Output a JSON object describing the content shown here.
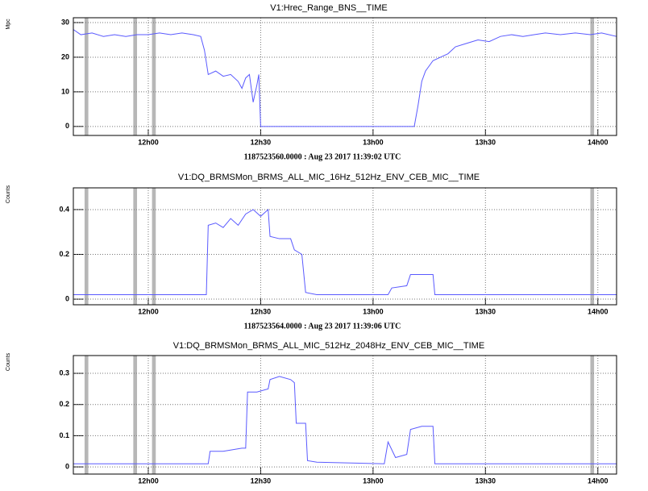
{
  "chart_data": [
    {
      "type": "line",
      "title": "V1:Hrec_Range_BNS__TIME",
      "ylabel": "Mpc",
      "annotation": "1187523560.0000 : Aug 23 2017 11:39:02 UTC",
      "x": [
        "11:40",
        "11:42",
        "11:45",
        "11:48",
        "11:51",
        "11:54",
        "11:57",
        "12:00",
        "12:03",
        "12:06",
        "12:09",
        "12:12",
        "12:14",
        "12:15",
        "12:16",
        "12:18",
        "12:20",
        "12:22",
        "12:24",
        "12:25",
        "12:26",
        "12:27",
        "12:28",
        "12:29",
        "12:29:30",
        "12:30",
        "13:11",
        "13:12",
        "13:13",
        "13:14",
        "13:16",
        "13:18",
        "13:20",
        "13:22",
        "13:25",
        "13:28",
        "13:31",
        "13:34",
        "13:37",
        "13:40",
        "13:43",
        "13:46",
        "13:50",
        "13:54",
        "13:58",
        "14:01",
        "14:05"
      ],
      "series": [
        {
          "color": "#5a5aff",
          "values": [
            28,
            26.5,
            27,
            26,
            26.5,
            26,
            26.5,
            26.5,
            27,
            26.5,
            27,
            26.5,
            26,
            22,
            15,
            16,
            14.5,
            15,
            13,
            11,
            14,
            15,
            7,
            12,
            15,
            0,
            0,
            6,
            13,
            16,
            19,
            20,
            21,
            23,
            24,
            25,
            24.5,
            26,
            26.5,
            26,
            26.5,
            27,
            26.5,
            27,
            26.5,
            27,
            26
          ]
        }
      ],
      "xlim": [
        "11:40",
        "14:05"
      ],
      "xticks": [
        {
          "value": "12:00",
          "label": "12h00"
        },
        {
          "value": "12:30",
          "label": "12h30"
        },
        {
          "value": "13:00",
          "label": "13h00"
        },
        {
          "value": "13:30",
          "label": "13h30"
        },
        {
          "value": "14:00",
          "label": "14h00"
        }
      ],
      "ylim": [
        -2.6,
        31.4
      ],
      "yticks": [
        0,
        10,
        20,
        30
      ],
      "grid": true,
      "shaded": [
        [
          "11:43",
          "11:44"
        ],
        [
          "11:56",
          "11:57"
        ],
        [
          "12:01",
          "12:02"
        ],
        [
          "13:58",
          "13:59"
        ]
      ]
    },
    {
      "type": "line",
      "title": "V1:DQ_BRMSMon_BRMS_ALL_MIC_16Hz_512Hz_ENV_CEB_MIC__TIME",
      "ylabel": "Counts",
      "annotation": "1187523564.0000 : Aug 23 2017 11:39:06 UTC",
      "x": [
        "11:40",
        "12:14",
        "12:15:30",
        "12:16",
        "12:18",
        "12:20",
        "12:22",
        "12:24",
        "12:26",
        "12:28",
        "12:30",
        "12:32",
        "12:32:30",
        "12:35",
        "12:38",
        "12:39",
        "12:41",
        "12:42",
        "12:45",
        "13:04",
        "13:05",
        "13:09",
        "13:10",
        "13:13",
        "13:16",
        "13:16:30",
        "14:05"
      ],
      "series": [
        {
          "color": "#5a5aff",
          "values": [
            0.02,
            0.02,
            0.02,
            0.33,
            0.34,
            0.32,
            0.36,
            0.33,
            0.38,
            0.4,
            0.37,
            0.4,
            0.28,
            0.27,
            0.27,
            0.22,
            0.2,
            0.03,
            0.02,
            0.02,
            0.05,
            0.06,
            0.11,
            0.11,
            0.11,
            0.02,
            0.02
          ]
        }
      ],
      "xlim": [
        "11:40",
        "14:05"
      ],
      "xticks": [
        {
          "value": "12:00",
          "label": "12h00"
        },
        {
          "value": "12:30",
          "label": "12h30"
        },
        {
          "value": "13:00",
          "label": "13h00"
        },
        {
          "value": "13:30",
          "label": "13h30"
        },
        {
          "value": "14:00",
          "label": "14h00"
        }
      ],
      "ylim": [
        -0.025,
        0.497
      ],
      "yticks": [
        0,
        0.2,
        0.4
      ],
      "grid": true,
      "shaded": [
        [
          "11:43",
          "11:44"
        ],
        [
          "11:56",
          "11:57"
        ],
        [
          "12:01",
          "12:02"
        ],
        [
          "13:58",
          "13:59"
        ]
      ]
    },
    {
      "type": "line",
      "title": "V1:DQ_BRMSMon_BRMS_ALL_MIC_512Hz_2048Hz_ENV_CEB_MIC__TIME",
      "ylabel": "Counts",
      "x": [
        "11:40",
        "12:16",
        "12:16:30",
        "12:20",
        "12:25",
        "12:26",
        "12:26:30",
        "12:29",
        "12:32",
        "12:32:30",
        "12:35",
        "12:38",
        "12:39",
        "12:39:30",
        "12:42",
        "12:42:30",
        "12:45",
        "13:03",
        "13:04",
        "13:06",
        "13:09",
        "13:10",
        "13:13",
        "13:16",
        "13:16:30",
        "14:05"
      ],
      "series": [
        {
          "color": "#5a5aff",
          "values": [
            0.01,
            0.01,
            0.05,
            0.05,
            0.06,
            0.06,
            0.24,
            0.24,
            0.25,
            0.28,
            0.29,
            0.28,
            0.27,
            0.14,
            0.14,
            0.02,
            0.015,
            0.01,
            0.08,
            0.03,
            0.04,
            0.12,
            0.13,
            0.13,
            0.01,
            0.01
          ]
        }
      ],
      "xlim": [
        "11:40",
        "14:05"
      ],
      "xticks": [
        {
          "value": "12:00",
          "label": "12h00"
        },
        {
          "value": "12:30",
          "label": "12h30"
        },
        {
          "value": "13:00",
          "label": "13h00"
        },
        {
          "value": "13:30",
          "label": "13h30"
        },
        {
          "value": "14:00",
          "label": "14h00"
        }
      ],
      "ylim": [
        -0.023,
        0.357
      ],
      "yticks": [
        0,
        0.1,
        0.2,
        0.3
      ],
      "grid": true,
      "shaded": [
        [
          "11:43",
          "11:44"
        ],
        [
          "11:56",
          "11:57"
        ],
        [
          "12:01",
          "12:02"
        ],
        [
          "13:58",
          "13:59"
        ]
      ]
    }
  ]
}
